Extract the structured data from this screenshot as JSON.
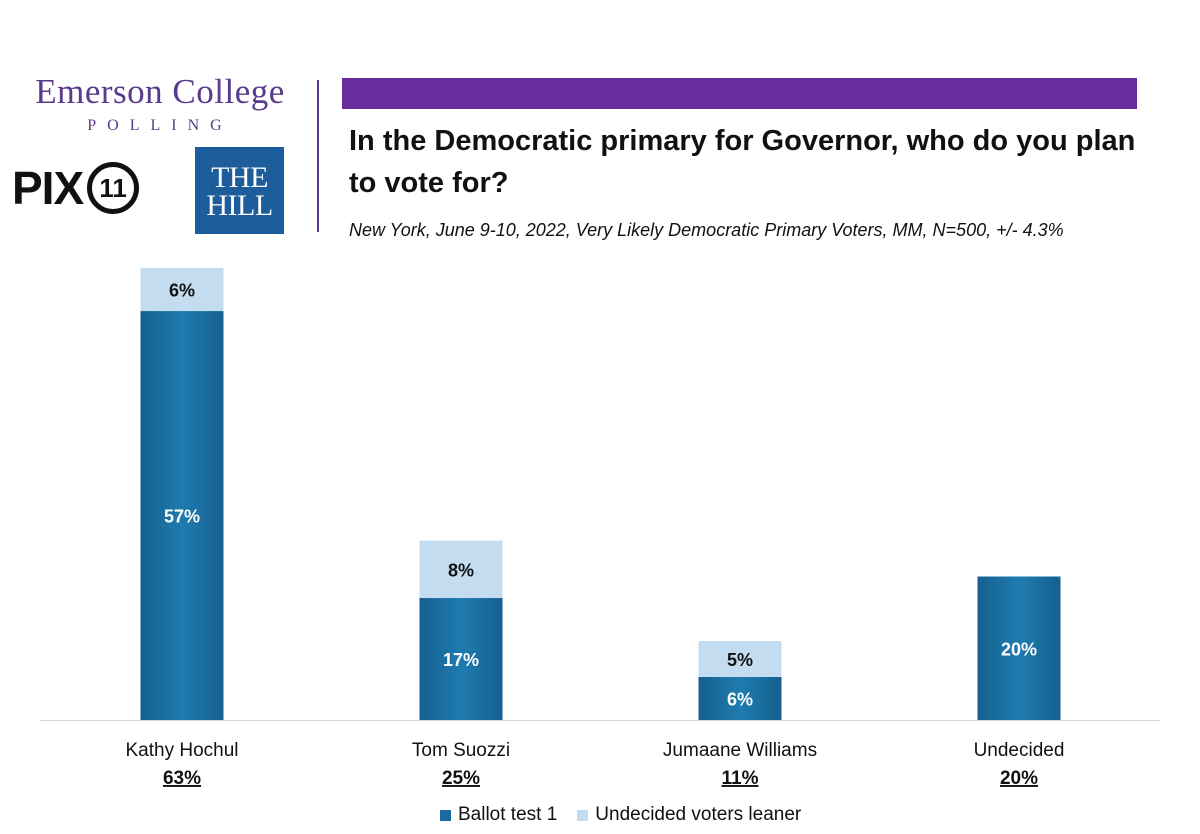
{
  "logos": {
    "emerson_line1": "Emerson College",
    "emerson_line2": "POLLING",
    "pix_text": "PIX",
    "pix_number": "11",
    "hill_line1": "THE",
    "hill_line2": "HILL"
  },
  "colors": {
    "accent_bar": "#6a2c9c",
    "ballot": "#1a6c9e",
    "leaner": "#c3dcef"
  },
  "chart_data": {
    "type": "bar",
    "stacked": true,
    "title": "In the Democratic primary for Governor, who do you plan to vote for?",
    "subtitle": "New York, June 9-10, 2022, Very Likely Democratic Primary Voters, MM, N=500, +/- 4.3%",
    "categories": [
      "Kathy Hochul",
      "Tom Suozzi",
      "Jumaane Williams",
      "Undecided"
    ],
    "totals": [
      "63%",
      "25%",
      "11%",
      "20%"
    ],
    "series": [
      {
        "name": "Ballot test 1",
        "values": [
          57,
          17,
          6,
          20
        ],
        "labels": [
          "57%",
          "17%",
          "6%",
          "20%"
        ],
        "color": "#1a6c9e"
      },
      {
        "name": "Undecided voters leaner",
        "values": [
          6,
          8,
          5,
          0
        ],
        "labels": [
          "6%",
          "8%",
          "5%",
          ""
        ],
        "color": "#c3dcef"
      }
    ],
    "ylim": [
      0,
      63
    ],
    "grid": false,
    "legend_position": "bottom"
  }
}
